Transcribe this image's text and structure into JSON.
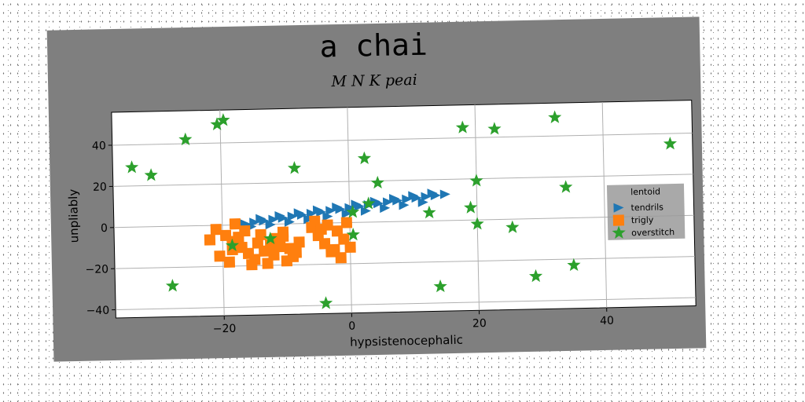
{
  "title": "a chai",
  "subtitle": "M N K peai",
  "chart_data": {
    "type": "scatter",
    "xlabel": "hypsistenocephalic",
    "ylabel": "unpliably",
    "xlim": [
      -37,
      54
    ],
    "ylim": [
      -44,
      56
    ],
    "xticks": [
      -20,
      0,
      20,
      40
    ],
    "yticks": [
      -40,
      -20,
      0,
      20,
      40
    ],
    "grid": true,
    "legend": {
      "title": "lentoid",
      "placement": "right",
      "entries": [
        "tendrils",
        "trigly",
        "overstitch"
      ]
    },
    "series": [
      {
        "name": "tendrils",
        "marker": "triangle-right",
        "color": "#1f77b4",
        "x": [
          -16.5,
          -15.0,
          -13.5,
          -12.0,
          -10.5,
          -9.0,
          -7.5,
          -6.0,
          -4.5,
          -3.0,
          -1.5,
          0.0,
          1.5,
          3.0,
          4.5,
          6.0,
          7.5,
          9.0,
          10.5,
          12.0,
          13.5,
          15.0,
          -15.5,
          -12.5,
          -9.5,
          -6.5,
          -3.5,
          -0.5,
          2.5,
          5.5,
          8.5,
          11.5,
          -14.0,
          -8.0,
          -2.0,
          4.0,
          10.0,
          -11.0,
          -5.0,
          1.0,
          7.0,
          13.0
        ],
        "y": [
          0.5,
          1.1,
          1.7,
          2.3,
          2.9,
          3.6,
          4.2,
          4.8,
          5.4,
          6.0,
          6.6,
          7.2,
          7.8,
          8.4,
          9.0,
          9.6,
          10.2,
          10.8,
          11.3,
          11.8,
          12.3,
          12.8,
          -1.0,
          -0.2,
          0.9,
          2.0,
          3.2,
          4.4,
          5.5,
          6.7,
          7.9,
          9.1,
          2.8,
          5.2,
          7.6,
          10.0,
          12.4,
          4.0,
          6.4,
          8.8,
          11.2,
          13.4
        ]
      },
      {
        "name": "trigly",
        "marker": "square",
        "color": "#ff7f0e",
        "x": [
          -21.0,
          -19.5,
          -18.5,
          -17.0,
          -16.0,
          -15.0,
          -13.5,
          -12.5,
          -11.5,
          -10.5,
          -9.5,
          -9.0,
          -8.0,
          -20.5,
          -19.0,
          -17.5,
          -16.5,
          -14.5,
          -13.0,
          -12.0,
          -11.0,
          -10.0,
          -8.5,
          -22.0,
          -18.0,
          -15.5,
          -6.0,
          -5.0,
          -4.0,
          -3.0,
          -2.0,
          -1.0,
          0.0,
          -5.5,
          -4.5,
          -3.5,
          -2.5,
          -1.5,
          -0.5,
          -18.5,
          -14.0,
          -10.5
        ],
        "y": [
          -2.0,
          -5.0,
          -8.0,
          -11.0,
          -14.0,
          -17.0,
          -13.0,
          -10.0,
          -7.0,
          -4.0,
          -12.0,
          -16.0,
          -9.0,
          -15.0,
          -18.0,
          -6.0,
          -3.0,
          -9.0,
          -19.0,
          -15.0,
          -11.0,
          -18.0,
          -14.0,
          -7.0,
          0.5,
          -19.5,
          -2.0,
          -6.0,
          -10.0,
          -14.0,
          -4.0,
          -8.0,
          -12.0,
          1.0,
          -3.0,
          -1.0,
          -13.0,
          -17.0,
          0.0,
          -12.0,
          -5.0,
          -6.0
        ]
      },
      {
        "name": "overstitch",
        "marker": "star",
        "color": "#2ca02c",
        "x": [
          -34.0,
          -31.0,
          -28.0,
          -25.5,
          -20.5,
          -19.5,
          -18.5,
          -12.5,
          -8.5,
          -4.0,
          0.5,
          0.5,
          2.5,
          3.0,
          4.5,
          12.5,
          14.0,
          18.0,
          19.0,
          20.0,
          20.0,
          23.0,
          25.5,
          29.0,
          32.5,
          34.0,
          35.0,
          50.5
        ],
        "y": [
          29.0,
          25.0,
          -29.0,
          42.0,
          49.0,
          51.0,
          -10.0,
          -7.0,
          27.0,
          -39.0,
          5.0,
          -6.0,
          31.0,
          9.0,
          19.0,
          4.0,
          -32.0,
          45.0,
          6.0,
          19.0,
          -2.0,
          44.0,
          -4.0,
          -28.0,
          49.0,
          15.0,
          -23.0,
          35.0
        ]
      }
    ]
  }
}
